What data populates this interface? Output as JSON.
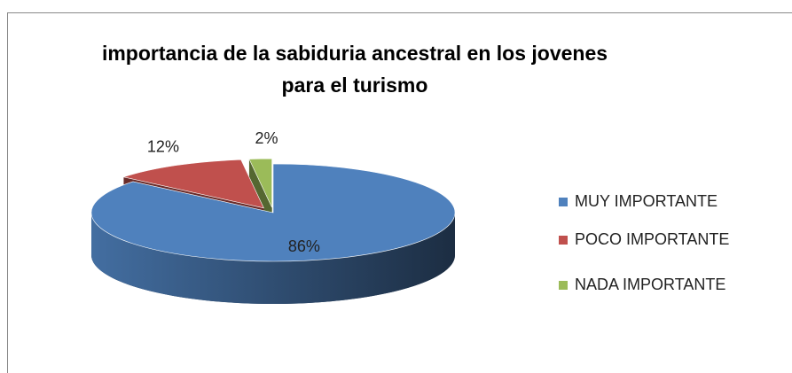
{
  "chart_data": {
    "type": "pie3d",
    "title": "importancia de la sabiduria ancestral en los jovenes para el turismo",
    "categories": [
      "MUY IMPORTANTE",
      "POCO IMPORTANTE",
      "NADA IMPORTANTE"
    ],
    "values": [
      86,
      12,
      2
    ],
    "value_labels": [
      "86%",
      "12%",
      "2%"
    ],
    "colors": [
      "#4f81bd",
      "#c0504d",
      "#9bbb59"
    ],
    "legend": "right"
  }
}
